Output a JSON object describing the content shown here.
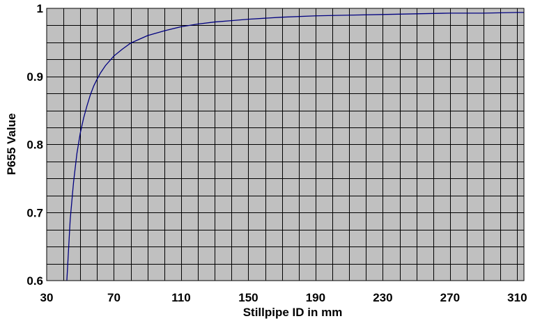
{
  "chart_data": {
    "type": "line",
    "title": "",
    "xlabel": "Stillpipe ID in mm",
    "ylabel": "P655 Value",
    "xlim": [
      30,
      314
    ],
    "ylim": [
      0.6,
      1.0
    ],
    "x_tick_labels": [
      "30",
      "70",
      "110",
      "150",
      "190",
      "230",
      "270",
      "310"
    ],
    "y_tick_labels": [
      "0.6",
      "0.7",
      "0.8",
      "0.9",
      "1"
    ],
    "x_tick_values": [
      30,
      70,
      110,
      150,
      190,
      230,
      270,
      310
    ],
    "y_tick_values": [
      0.6,
      0.7,
      0.8,
      0.9,
      1.0
    ],
    "grid": true,
    "plot_background": "#c0c0c0",
    "line_color": "#000080",
    "grid_color": "#000000",
    "series": [
      {
        "x": [
          42,
          44,
          46,
          48,
          50,
          52,
          54,
          56,
          58,
          60,
          62,
          65,
          70,
          75,
          80,
          90,
          100,
          110,
          120,
          130,
          140,
          150,
          170,
          190,
          210,
          230,
          250,
          270,
          290,
          310,
          314
        ],
        "y": [
          0.6,
          0.69,
          0.745,
          0.787,
          0.817,
          0.839,
          0.857,
          0.873,
          0.886,
          0.896,
          0.905,
          0.916,
          0.93,
          0.94,
          0.949,
          0.96,
          0.967,
          0.973,
          0.977,
          0.98,
          0.982,
          0.984,
          0.987,
          0.989,
          0.99,
          0.991,
          0.992,
          0.993,
          0.993,
          0.994,
          0.994
        ]
      }
    ]
  }
}
